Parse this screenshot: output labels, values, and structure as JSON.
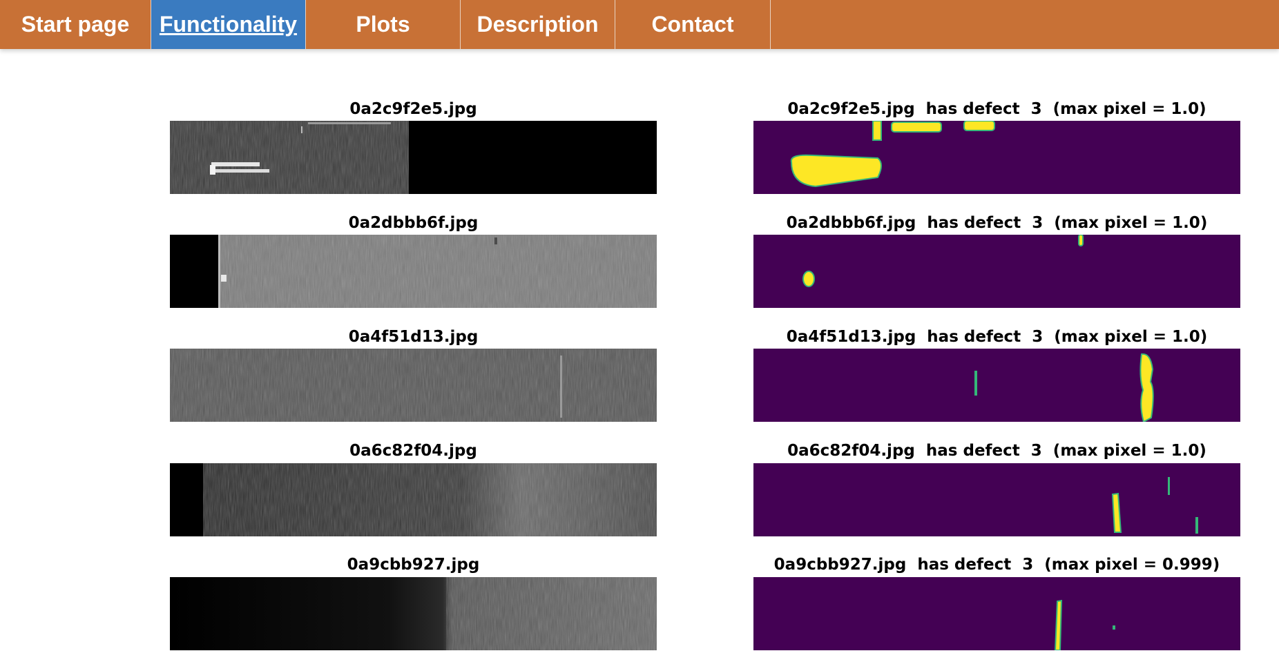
{
  "nav": {
    "items": [
      "Start page",
      "Functionality",
      "Plots",
      "Description",
      "Contact"
    ],
    "active": "Functionality",
    "color": "#c87136",
    "active_color": "#3a7bc0"
  },
  "rows": [
    {
      "file": "0a2c9f2e5.jpg",
      "mask_title": "0a2c9f2e5.jpg  has defect  3  (max pixel = 1.0)"
    },
    {
      "file": "0a2dbbb6f.jpg",
      "mask_title": "0a2dbbb6f.jpg  has defect  3  (max pixel = 1.0)"
    },
    {
      "file": "0a4f51d13.jpg",
      "mask_title": "0a4f51d13.jpg  has defect  3  (max pixel = 1.0)"
    },
    {
      "file": "0a6c82f04.jpg",
      "mask_title": "0a6c82f04.jpg  has defect  3  (max pixel = 1.0)"
    },
    {
      "file": "0a9cbb927.jpg",
      "mask_title": "0a9cbb927.jpg  has defect  3  (max pixel = 0.999)"
    }
  ],
  "mask_colors": {
    "background": "#440154",
    "defect": "#fde725",
    "edge": "#35b779"
  }
}
